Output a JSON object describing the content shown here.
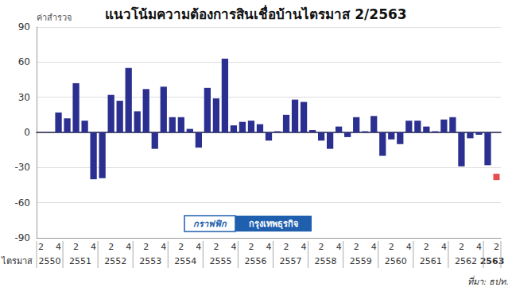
{
  "chart_data": {
    "type": "bar",
    "title": "แนวโน้มความต้องการสินเชื่อบ้านไตรมาส 2/2563",
    "y_label": "ค่าสำรวจ",
    "x_label": "ไตรมาส",
    "source": "ที่มา: ธปท.",
    "credit": [
      "กราฟฟิก",
      "กรุงเทพธุรกิจ"
    ],
    "categories": [
      "2",
      null,
      "4",
      null,
      "2",
      null,
      "4",
      null,
      "2",
      null,
      "4",
      null,
      "2",
      null,
      "4",
      null,
      "2",
      null,
      "4",
      null,
      "2",
      null,
      "4",
      null,
      "2",
      null,
      "4",
      null,
      "2",
      null,
      "4",
      null,
      "2",
      null,
      "4",
      null,
      "2",
      null,
      "4",
      null,
      "2",
      null,
      "4",
      null,
      "2",
      null,
      "4",
      null,
      "2",
      null,
      "4",
      null,
      "2"
    ],
    "years": [
      "2550",
      "2550",
      "2550",
      "2551",
      "2551",
      "2551",
      "2551",
      "2552",
      "2552",
      "2552",
      "2552",
      "2553",
      "2553",
      "2553",
      "2553",
      "2554",
      "2554",
      "2554",
      "2554",
      "2555",
      "2555",
      "2555",
      "2555",
      "2556",
      "2556",
      "2556",
      "2556",
      "2557",
      "2557",
      "2557",
      "2557",
      "2558",
      "2558",
      "2558",
      "2558",
      "2559",
      "2559",
      "2559",
      "2559",
      "2560",
      "2560",
      "2560",
      "2560",
      "2561",
      "2561",
      "2561",
      "2561",
      "2562",
      "2562",
      "2562",
      "2562",
      "2563",
      "2563"
    ],
    "series": [
      {
        "type": "bar",
        "color": "#2b2f8f",
        "values": [
          null,
          null,
          17,
          12,
          42,
          10,
          -40,
          -39,
          32,
          27,
          55,
          18,
          37,
          -14,
          39,
          13,
          13,
          3,
          -13,
          38,
          29,
          63,
          6,
          9,
          10,
          7,
          -7,
          1,
          15,
          28,
          26,
          2,
          -7,
          -14,
          5,
          -4,
          13,
          1,
          14,
          -20,
          -6,
          -10,
          10,
          10,
          5,
          1,
          11,
          13,
          -29,
          -5,
          -2,
          -28,
          null
        ]
      },
      {
        "type": "scatter",
        "marker": "square",
        "color": "#e02020",
        "values": [
          null,
          null,
          null,
          null,
          null,
          null,
          null,
          null,
          null,
          null,
          null,
          null,
          null,
          null,
          null,
          null,
          null,
          null,
          null,
          null,
          null,
          null,
          null,
          null,
          null,
          null,
          null,
          null,
          null,
          null,
          null,
          null,
          null,
          null,
          null,
          null,
          null,
          null,
          null,
          null,
          null,
          null,
          null,
          null,
          null,
          null,
          null,
          null,
          null,
          null,
          null,
          null,
          -38
        ]
      }
    ],
    "ylim": [
      -90,
      90
    ],
    "yticks": [
      -90,
      -60,
      -30,
      0,
      30,
      60,
      90
    ],
    "grid": true
  }
}
